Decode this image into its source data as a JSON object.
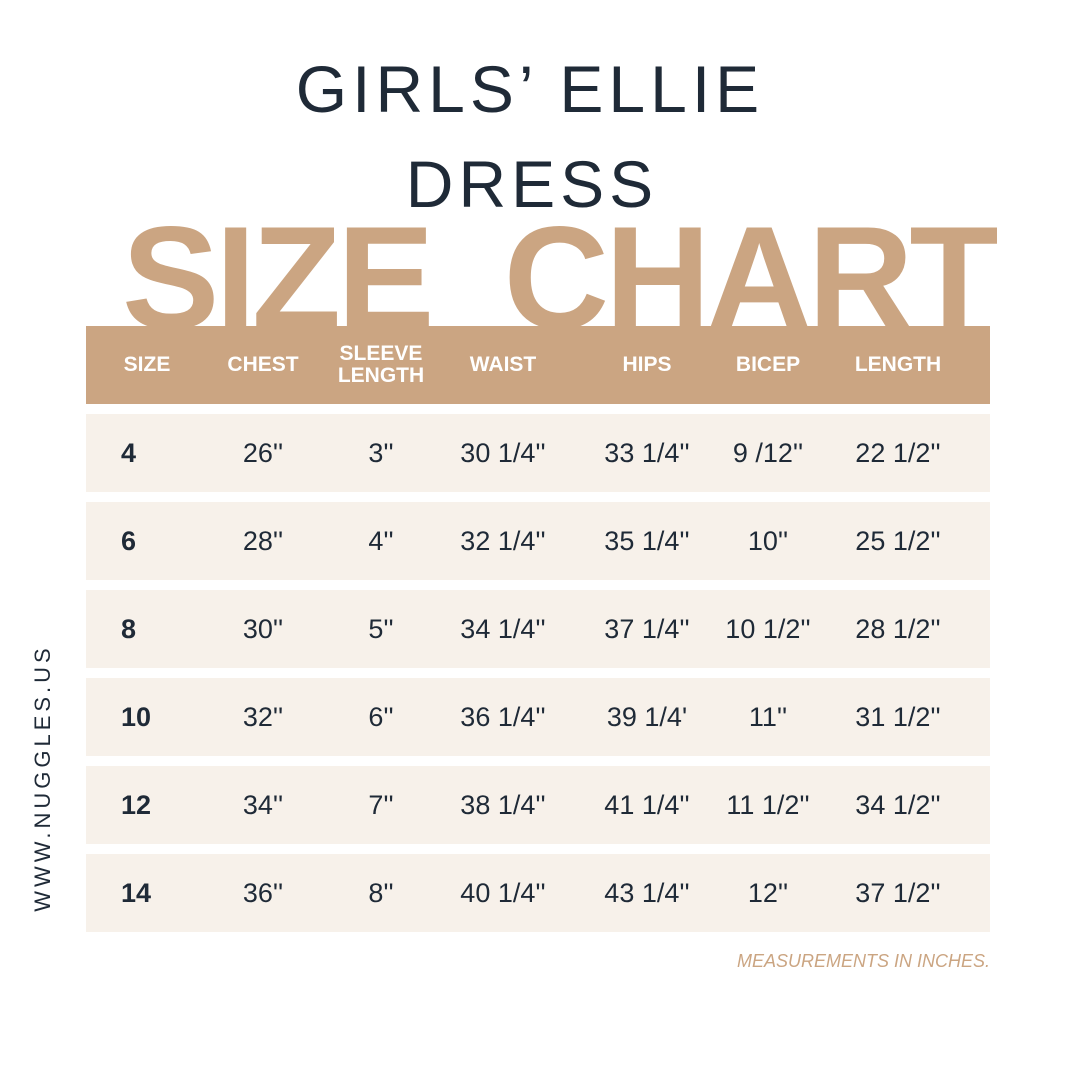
{
  "title_line1": "GIRLS’ ELLIE",
  "title_line2": "DRESS",
  "banner": "SIZE  CHART",
  "website": "WWW.NUGGLES.US",
  "note": "MEASUREMENTS IN INCHES.",
  "colors": {
    "accent": "#cba582",
    "row_bg": "#f7f1ea",
    "text": "#1f2a37"
  },
  "columns": [
    "SIZE",
    "CHEST",
    "SLEEVE\nLENGTH",
    "WAIST",
    "HIPS",
    "BICEP",
    "LENGTH"
  ],
  "rows": [
    [
      "4",
      "26''",
      "3''",
      "30 1/4''",
      "33 1/4''",
      "9 /12''",
      "22 1/2''"
    ],
    [
      "6",
      "28''",
      "4''",
      "32 1/4''",
      "35 1/4''",
      "10''",
      "25 1/2''"
    ],
    [
      "8",
      "30''",
      "5''",
      "34 1/4''",
      "37 1/4''",
      "10 1/2''",
      "28 1/2''"
    ],
    [
      "10",
      "32''",
      "6''",
      "36 1/4''",
      "39 1/4'",
      "11''",
      "31 1/2''"
    ],
    [
      "12",
      "34''",
      "7''",
      "38 1/4''",
      "41 1/4''",
      "11 1/2''",
      "34 1/2''"
    ],
    [
      "14",
      "36''",
      "8''",
      "40 1/4''",
      "43 1/4''",
      "12''",
      "37 1/2''"
    ]
  ]
}
